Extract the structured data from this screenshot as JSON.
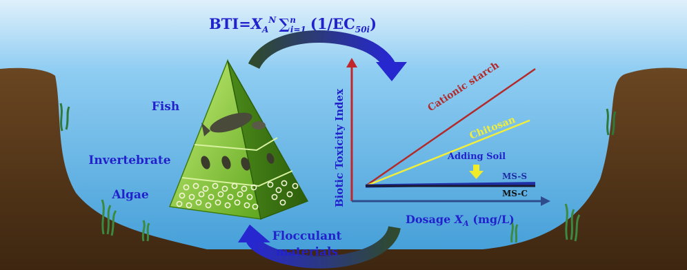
{
  "formula": {
    "prefix": "BTI=",
    "x_symbol": "X",
    "x_sub": "A",
    "x_sup": "N",
    "sum_symbol": "∑",
    "sum_sup": "n",
    "sum_sub": "i=1",
    "term": "(1/EC",
    "term_sub": "50i",
    "term_close": ")"
  },
  "pyramid": {
    "levels": [
      {
        "label": "Fish"
      },
      {
        "label": "Invertebrate"
      },
      {
        "label": "Algae"
      }
    ]
  },
  "cycle_label": [
    "Flocculant",
    "materials"
  ],
  "chart_data": {
    "type": "line",
    "ylabel": "Biotic Toxicity Index",
    "xlabel_prefix": "Dosage ",
    "xlabel_symbol": "X",
    "xlabel_sub": "A",
    "xlabel_suffix": " (mg/L)",
    "series": [
      {
        "name": "Cationic starch",
        "color": "#b22a2a",
        "start": [
          0,
          0
        ],
        "end": [
          1,
          1
        ]
      },
      {
        "name": "Chitosan",
        "color": "#f2ee3a",
        "start": [
          0,
          0
        ],
        "end": [
          1,
          0.56
        ]
      },
      {
        "name": "MS-S",
        "color": "#1f2fa6",
        "start": [
          0,
          0
        ],
        "end": [
          1,
          0.02
        ]
      },
      {
        "name": "MS-C",
        "color": "#1a1a2e",
        "start": [
          0,
          0
        ],
        "end": [
          1,
          0.0
        ]
      }
    ],
    "annotation": "Adding Soil",
    "colors": {
      "y_axis": "#c0262a",
      "x_axis": "#2e4c8c"
    }
  },
  "colors": {
    "water": "#61b5e8",
    "soil": "#5c3a1a",
    "label_text": "#2222cc",
    "arrow_dark": "#2f4a2f",
    "arrow_blue": "#2727d0"
  }
}
